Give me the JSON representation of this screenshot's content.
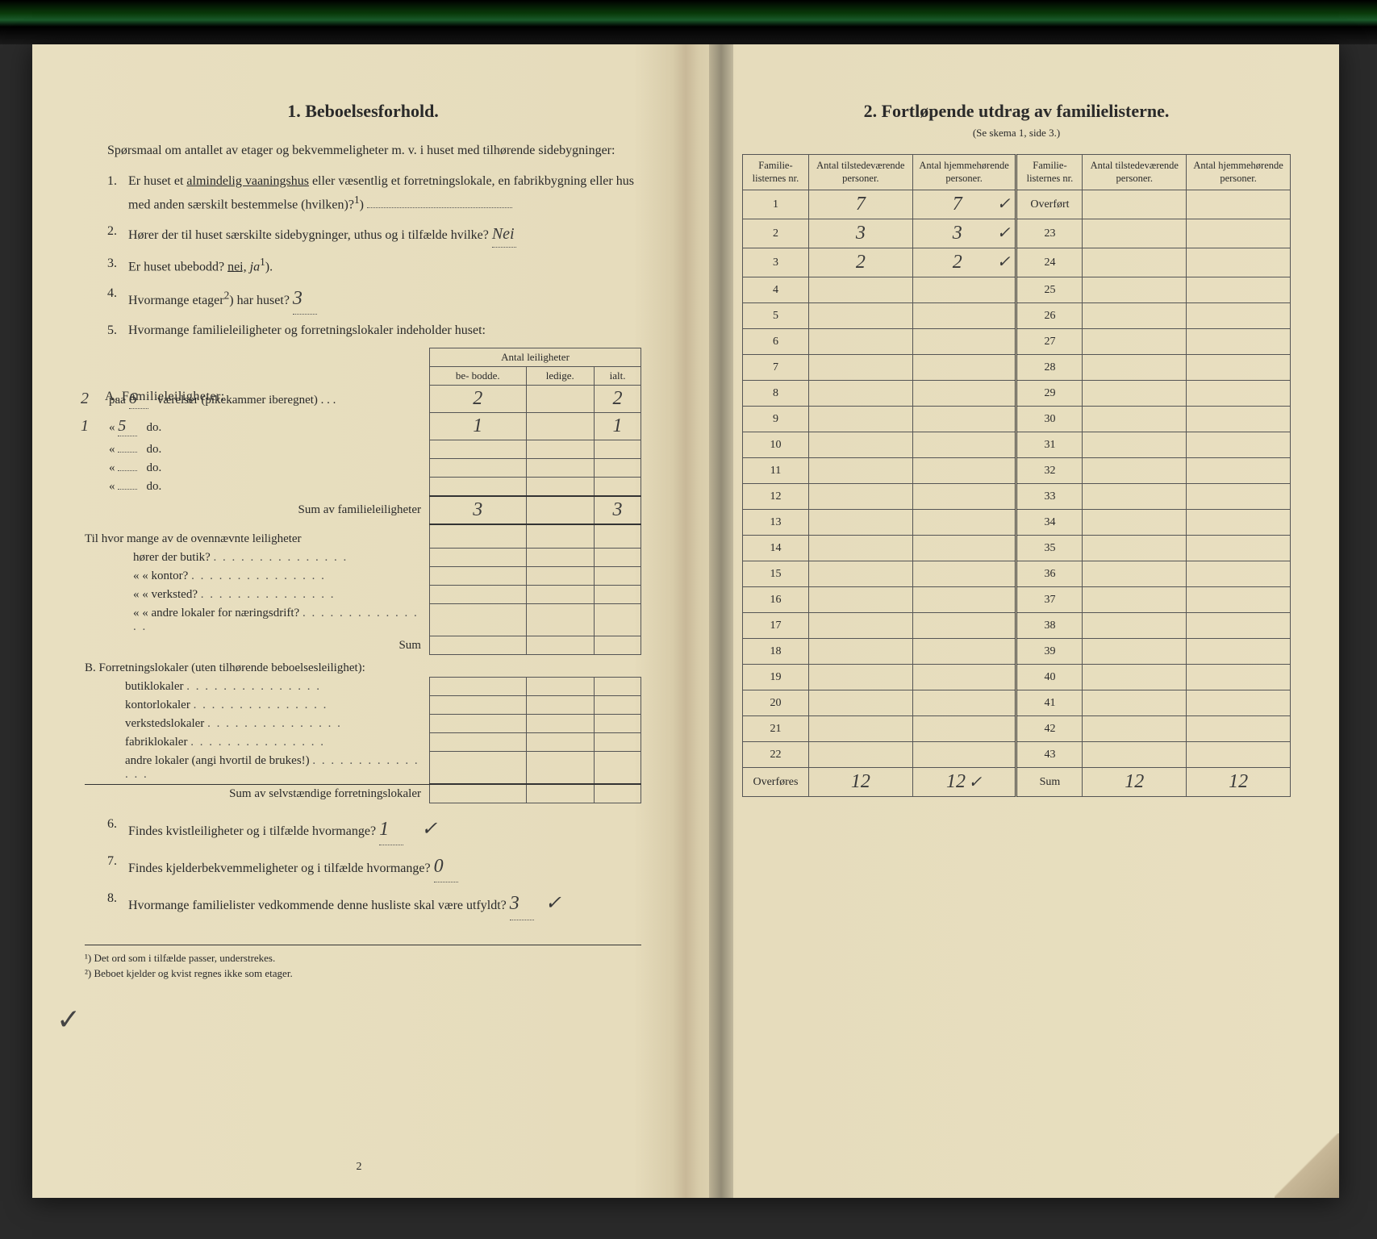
{
  "colors": {
    "paper": "#e8dfc0",
    "ink": "#2a2a2a",
    "handwriting": "#3a3a3a",
    "rule": "#555555",
    "background": "#2a2a2a"
  },
  "typography": {
    "body_fontsize_pt": 12,
    "title_fontsize_pt": 16,
    "handwriting_fontsize_pt": 18,
    "font_family": "serif"
  },
  "left": {
    "title": "1.   Beboelsesforhold.",
    "intro": "Spørsmaal om antallet av etager og bekvemmeligheter m. v. i huset med tilhørende sidebygninger:",
    "q1": {
      "num": "1.",
      "text_a": "Er huset et ",
      "underlined": "almindelig vaaningshus",
      "text_b": " eller væsentlig et forretnings­lokale, en fabrikbygning eller hus med anden særskilt bestem­melse (hvilken)?",
      "sup": "1",
      "answer": ""
    },
    "q2": {
      "num": "2.",
      "text": "Hører der til huset særskilte sidebygninger, uthus og i tilfælde hvilke?",
      "answer": "Nei"
    },
    "q3": {
      "num": "3.",
      "text_a": "Er huset ubebodd?  ",
      "opt_nei": "nei,",
      "opt_ja": "ja",
      "sup": "1",
      "answer_underlined": "nei"
    },
    "q4": {
      "num": "4.",
      "text": "Hvormange etager",
      "sup": "2",
      "text_b": ") har huset?",
      "answer": "3"
    },
    "q5": {
      "num": "5.",
      "text": "Hvormange familieleiligheter og forretningslokaler indeholder huset:"
    },
    "apt": {
      "header_top": "Antal leiligheter",
      "header_cols": [
        "be-\nbodde.",
        "ledige.",
        "ialt."
      ],
      "section_a": "A. Familieleiligheter:",
      "rows": [
        {
          "prefix_hand": "2",
          "paa": "paa",
          "rooms_hand": "6",
          "label": "værelser (pikekammer iberegnet) . . .",
          "bebodde": "2",
          "ledige": "",
          "ialt": "2"
        },
        {
          "prefix_hand": "1",
          "paa": "«",
          "rooms_hand": "5",
          "label": "do.",
          "bebodde": "1",
          "ledige": "",
          "ialt": "1"
        },
        {
          "prefix_hand": "",
          "paa": "«",
          "rooms_hand": "",
          "label": "do.",
          "bebodde": "",
          "ledige": "",
          "ialt": ""
        },
        {
          "prefix_hand": "",
          "paa": "«",
          "rooms_hand": "",
          "label": "do.",
          "bebodde": "",
          "ledige": "",
          "ialt": ""
        },
        {
          "prefix_hand": "",
          "paa": "«",
          "rooms_hand": "",
          "label": "do.",
          "bebodde": "",
          "ledige": "",
          "ialt": ""
        }
      ],
      "sum_a_label": "Sum av familieleiligheter",
      "sum_a": {
        "bebodde": "3",
        "ledige": "",
        "ialt": "3"
      },
      "sub_q": "Til hvor mange av de ovennævnte leiligheter",
      "sub_rows": [
        "hører der butik?",
        "«     «   kontor?",
        "«     «   verksted?",
        "«     «   andre lokaler for næringsdrift?"
      ],
      "sum_sub_label": "Sum",
      "section_b": "B. Forretningslokaler (uten tilhørende be­boelsesleilighet):",
      "b_rows": [
        "butiklokaler",
        "kontorlokaler",
        "verkstedslokaler",
        "fabriklokaler",
        "andre lokaler (angi hvortil de brukes!)"
      ],
      "sum_b_label": "Sum av selvstændige forretningslokaler"
    },
    "q6": {
      "num": "6.",
      "text": "Findes kvistleiligheter og i tilfælde hvormange?",
      "answer": "1",
      "check": "✓"
    },
    "q7": {
      "num": "7.",
      "text": "Findes kjelderbekvemmeligheter og i tilfælde hvormange?",
      "answer": "0"
    },
    "q8": {
      "num": "8.",
      "text": "Hvormange familielister vedkommende denne husliste skal være utfyldt?",
      "answer": "3",
      "check": "✓"
    },
    "footnote1": "¹) Det ord som i tilfælde passer, understrekes.",
    "footnote2": "²) Beboet kjelder og kvist regnes ikke som etager.",
    "page_num": "2",
    "margin_check": "✓"
  },
  "right": {
    "title": "2.   Fortløpende utdrag av familielisterne.",
    "subtitle": "(Se skema 1, side 3.)",
    "headers": {
      "c1": "Familie-\nlisternes\nnr.",
      "c2": "Antal\ntilstedeværende\npersoner.",
      "c3": "Antal\nhjemmehørende\npersoner.",
      "c4": "Familie-\nlisternes\nnr.",
      "c5": "Antal\ntilstedeværende\npersoner.",
      "c6": "Antal\nhjemmehørende\npersoner."
    },
    "rows_left": [
      {
        "n": "1",
        "present": "7",
        "home": "7",
        "check": "✓"
      },
      {
        "n": "2",
        "present": "3",
        "home": "3",
        "check": "✓"
      },
      {
        "n": "3",
        "present": "2",
        "home": "2",
        "check": "✓"
      },
      {
        "n": "4",
        "present": "",
        "home": "",
        "check": ""
      },
      {
        "n": "5",
        "present": "",
        "home": "",
        "check": ""
      },
      {
        "n": "6",
        "present": "",
        "home": "",
        "check": ""
      },
      {
        "n": "7",
        "present": "",
        "home": "",
        "check": ""
      },
      {
        "n": "8",
        "present": "",
        "home": "",
        "check": ""
      },
      {
        "n": "9",
        "present": "",
        "home": "",
        "check": ""
      },
      {
        "n": "10",
        "present": "",
        "home": "",
        "check": ""
      },
      {
        "n": "11",
        "present": "",
        "home": "",
        "check": ""
      },
      {
        "n": "12",
        "present": "",
        "home": "",
        "check": ""
      },
      {
        "n": "13",
        "present": "",
        "home": "",
        "check": ""
      },
      {
        "n": "14",
        "present": "",
        "home": "",
        "check": ""
      },
      {
        "n": "15",
        "present": "",
        "home": "",
        "check": ""
      },
      {
        "n": "16",
        "present": "",
        "home": "",
        "check": ""
      },
      {
        "n": "17",
        "present": "",
        "home": "",
        "check": ""
      },
      {
        "n": "18",
        "present": "",
        "home": "",
        "check": ""
      },
      {
        "n": "19",
        "present": "",
        "home": "",
        "check": ""
      },
      {
        "n": "20",
        "present": "",
        "home": "",
        "check": ""
      },
      {
        "n": "21",
        "present": "",
        "home": "",
        "check": ""
      },
      {
        "n": "22",
        "present": "",
        "home": "",
        "check": ""
      }
    ],
    "rows_right_label_first": "Overført",
    "rows_right_nums": [
      "23",
      "24",
      "25",
      "26",
      "27",
      "28",
      "29",
      "30",
      "31",
      "32",
      "33",
      "34",
      "35",
      "36",
      "37",
      "38",
      "39",
      "40",
      "41",
      "42",
      "43"
    ],
    "footer_left_label": "Overføres",
    "footer_right_label": "Sum",
    "footer": {
      "present_l": "12",
      "home_l": "12",
      "check_l": "✓",
      "present_r": "12",
      "home_r": "12"
    }
  }
}
